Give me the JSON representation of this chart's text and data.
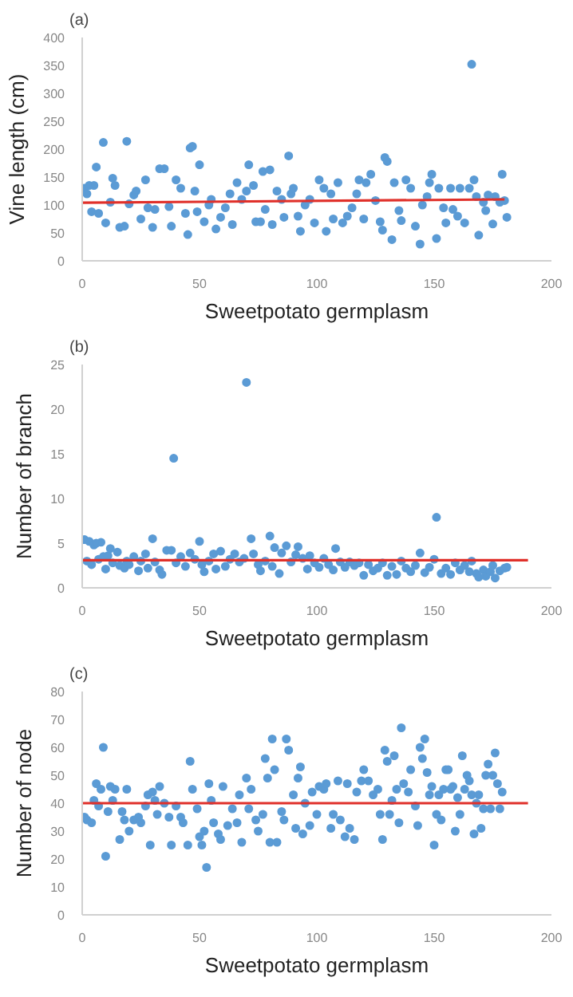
{
  "chart_data": [
    {
      "type": "scatter",
      "title": "(a)",
      "xlabel": "Sweetpotato germplasm",
      "ylabel": "Vine length (cm)",
      "xlim": [
        0,
        200
      ],
      "xticks": [
        0,
        50,
        100,
        150,
        200
      ],
      "ylim": [
        0,
        400
      ],
      "yticks": [
        0,
        50,
        100,
        150,
        200,
        250,
        300,
        350,
        400
      ],
      "grid": false,
      "series": [
        {
          "marker": "circle",
          "color": "#5b9bd5",
          "x": [
            1,
            2,
            3,
            4,
            5,
            6,
            7,
            9,
            10,
            12,
            13,
            14,
            16,
            18,
            19,
            20,
            22,
            23,
            25,
            27,
            28,
            30,
            31,
            33,
            35,
            37,
            38,
            40,
            42,
            44,
            45,
            46,
            47,
            48,
            49,
            50,
            52,
            54,
            55,
            57,
            59,
            61,
            63,
            64,
            66,
            68,
            70,
            71,
            73,
            74,
            76,
            77,
            78,
            80,
            81,
            83,
            85,
            86,
            88,
            89,
            90,
            92,
            93,
            95,
            97,
            99,
            101,
            103,
            104,
            106,
            107,
            109,
            111,
            113,
            115,
            117,
            118,
            120,
            121,
            123,
            125,
            127,
            128,
            129,
            130,
            132,
            133,
            135,
            136,
            138,
            140,
            142,
            144,
            145,
            147,
            148,
            149,
            151,
            152,
            154,
            155,
            157,
            158,
            160,
            161,
            163,
            165,
            166,
            167,
            168,
            169,
            171,
            172,
            173,
            175,
            176,
            178,
            179,
            180,
            181
          ],
          "values": [
            130,
            120,
            135,
            88,
            135,
            168,
            85,
            212,
            68,
            105,
            148,
            135,
            60,
            62,
            214,
            102,
            118,
            125,
            75,
            145,
            95,
            60,
            92,
            165,
            165,
            97,
            62,
            145,
            130,
            85,
            47,
            202,
            205,
            125,
            88,
            172,
            70,
            100,
            110,
            57,
            78,
            95,
            120,
            65,
            140,
            110,
            125,
            172,
            135,
            70,
            70,
            160,
            92,
            163,
            65,
            125,
            110,
            78,
            188,
            120,
            130,
            80,
            53,
            100,
            110,
            68,
            145,
            130,
            53,
            120,
            75,
            140,
            68,
            80,
            95,
            120,
            145,
            75,
            140,
            155,
            108,
            70,
            55,
            185,
            178,
            38,
            140,
            90,
            72,
            145,
            130,
            62,
            30,
            100,
            115,
            140,
            155,
            40,
            130,
            95,
            68,
            130,
            92,
            80,
            130,
            68,
            130,
            352,
            145,
            115,
            46,
            105,
            90,
            118,
            66,
            115,
            105,
            155,
            108,
            78
          ]
        },
        {
          "type": "line",
          "color": "#e0302a",
          "x": [
            0,
            180
          ],
          "values": [
            104,
            110
          ]
        }
      ]
    },
    {
      "type": "scatter",
      "title": "(b)",
      "xlabel": "Sweetpotato germplasm",
      "ylabel": "Number of branch",
      "xlim": [
        0,
        200
      ],
      "xticks": [
        0,
        50,
        100,
        150,
        200
      ],
      "ylim": [
        0,
        25
      ],
      "yticks": [
        0,
        5,
        10,
        15,
        20,
        25
      ],
      "grid": false,
      "series": [
        {
          "marker": "circle",
          "color": "#5b9bd5",
          "x": [
            1,
            2,
            3,
            4,
            5,
            6,
            7,
            8,
            9,
            10,
            11,
            12,
            13,
            15,
            16,
            18,
            19,
            20,
            22,
            24,
            25,
            27,
            28,
            30,
            31,
            33,
            34,
            36,
            38,
            39,
            40,
            42,
            44,
            46,
            48,
            50,
            51,
            52,
            54,
            56,
            57,
            59,
            61,
            63,
            65,
            67,
            69,
            70,
            72,
            73,
            75,
            76,
            78,
            80,
            81,
            82,
            84,
            85,
            87,
            89,
            91,
            92,
            94,
            96,
            97,
            99,
            101,
            103,
            105,
            107,
            108,
            110,
            112,
            114,
            116,
            118,
            120,
            122,
            124,
            126,
            128,
            130,
            132,
            134,
            136,
            138,
            140,
            142,
            144,
            146,
            148,
            150,
            151,
            153,
            155,
            157,
            159,
            161,
            163,
            165,
            166,
            168,
            169,
            171,
            172,
            174,
            175,
            176,
            178,
            180,
            181
          ],
          "values": [
            5.4,
            3.0,
            5.2,
            2.6,
            4.8,
            5.0,
            3.2,
            5.1,
            3.5,
            2.1,
            3.6,
            4.4,
            2.8,
            4.0,
            2.5,
            2.2,
            3.0,
            2.6,
            3.5,
            1.9,
            3.0,
            3.8,
            2.2,
            5.5,
            2.9,
            2.0,
            1.5,
            4.2,
            4.2,
            14.5,
            2.8,
            3.5,
            2.4,
            3.9,
            3.2,
            5.2,
            2.6,
            1.8,
            3.0,
            3.8,
            2.1,
            4.1,
            2.4,
            3.2,
            3.8,
            2.9,
            3.3,
            23.0,
            5.5,
            3.8,
            2.6,
            1.9,
            3.0,
            5.8,
            2.4,
            4.5,
            1.6,
            3.9,
            4.7,
            2.9,
            3.7,
            4.6,
            3.3,
            2.1,
            3.6,
            2.8,
            2.3,
            3.3,
            2.6,
            2.0,
            4.4,
            2.9,
            2.3,
            2.9,
            2.5,
            2.8,
            1.4,
            2.6,
            1.9,
            2.2,
            2.8,
            1.4,
            2.4,
            1.5,
            3.0,
            2.2,
            1.8,
            2.5,
            3.9,
            1.7,
            2.3,
            3.2,
            7.9,
            1.6,
            2.2,
            1.5,
            2.8,
            2.0,
            2.5,
            1.8,
            3.0,
            1.6,
            1.2,
            2.0,
            1.3,
            1.8,
            2.5,
            1.1,
            1.9,
            2.2,
            2.3
          ]
        },
        {
          "type": "line",
          "color": "#e0302a",
          "x": [
            0,
            190
          ],
          "values": [
            3.1,
            3.1
          ]
        }
      ]
    },
    {
      "type": "scatter",
      "title": "(c)",
      "xlabel": "Sweetpotato germplasm",
      "ylabel": "Number of node",
      "xlim": [
        0,
        200
      ],
      "xticks": [
        0,
        50,
        100,
        150,
        200
      ],
      "ylim": [
        0,
        80
      ],
      "yticks": [
        0,
        10,
        20,
        30,
        40,
        50,
        60,
        70,
        80
      ],
      "grid": false,
      "series": [
        {
          "marker": "circle",
          "color": "#5b9bd5",
          "x": [
            1,
            2,
            4,
            5,
            6,
            7,
            8,
            9,
            10,
            11,
            12,
            13,
            14,
            16,
            17,
            18,
            19,
            20,
            22,
            24,
            25,
            27,
            28,
            29,
            30,
            31,
            32,
            33,
            35,
            37,
            38,
            40,
            42,
            43,
            45,
            46,
            47,
            49,
            50,
            51,
            52,
            53,
            54,
            55,
            56,
            58,
            59,
            60,
            62,
            64,
            66,
            67,
            68,
            70,
            71,
            72,
            74,
            75,
            77,
            78,
            79,
            80,
            81,
            82,
            83,
            85,
            86,
            87,
            88,
            90,
            91,
            92,
            93,
            94,
            95,
            97,
            98,
            100,
            101,
            103,
            104,
            106,
            107,
            109,
            110,
            112,
            113,
            114,
            116,
            117,
            119,
            120,
            122,
            124,
            126,
            127,
            128,
            129,
            130,
            131,
            132,
            133,
            134,
            135,
            136,
            137,
            139,
            140,
            142,
            143,
            144,
            145,
            146,
            147,
            148,
            149,
            150,
            151,
            152,
            153,
            154,
            155,
            156,
            157,
            158,
            159,
            160,
            161,
            162,
            163,
            164,
            165,
            166,
            167,
            168,
            169,
            170,
            171,
            172,
            173,
            174,
            175,
            176,
            177,
            178,
            179
          ],
          "values": [
            35,
            34,
            33,
            41,
            47,
            39,
            45,
            60,
            21,
            37,
            46,
            41,
            45,
            27,
            37,
            34,
            45,
            30,
            34,
            35,
            33,
            39,
            43,
            25,
            44,
            41,
            36,
            46,
            40,
            35,
            25,
            39,
            35,
            33,
            25,
            55,
            45,
            38,
            28,
            25,
            30,
            17,
            47,
            41,
            33,
            29,
            27,
            46,
            32,
            38,
            33,
            43,
            26,
            49,
            38,
            45,
            34,
            30,
            36,
            56,
            49,
            26,
            63,
            52,
            26,
            37,
            34,
            63,
            59,
            43,
            31,
            49,
            53,
            29,
            40,
            32,
            44,
            36,
            46,
            45,
            47,
            31,
            36,
            48,
            34,
            28,
            47,
            31,
            27,
            44,
            48,
            52,
            48,
            43,
            45,
            36,
            27,
            59,
            55,
            36,
            41,
            57,
            45,
            33,
            67,
            47,
            44,
            52,
            39,
            32,
            60,
            56,
            63,
            51,
            43,
            46,
            25,
            36,
            43,
            34,
            45,
            52,
            52,
            45,
            46,
            30,
            42,
            36,
            57,
            45,
            50,
            48,
            43,
            29,
            40,
            43,
            31,
            38,
            50,
            54,
            38,
            50,
            58,
            47,
            38,
            44
          ]
        },
        {
          "type": "line",
          "color": "#e0302a",
          "x": [
            0,
            190
          ],
          "values": [
            40,
            40
          ]
        }
      ]
    }
  ]
}
